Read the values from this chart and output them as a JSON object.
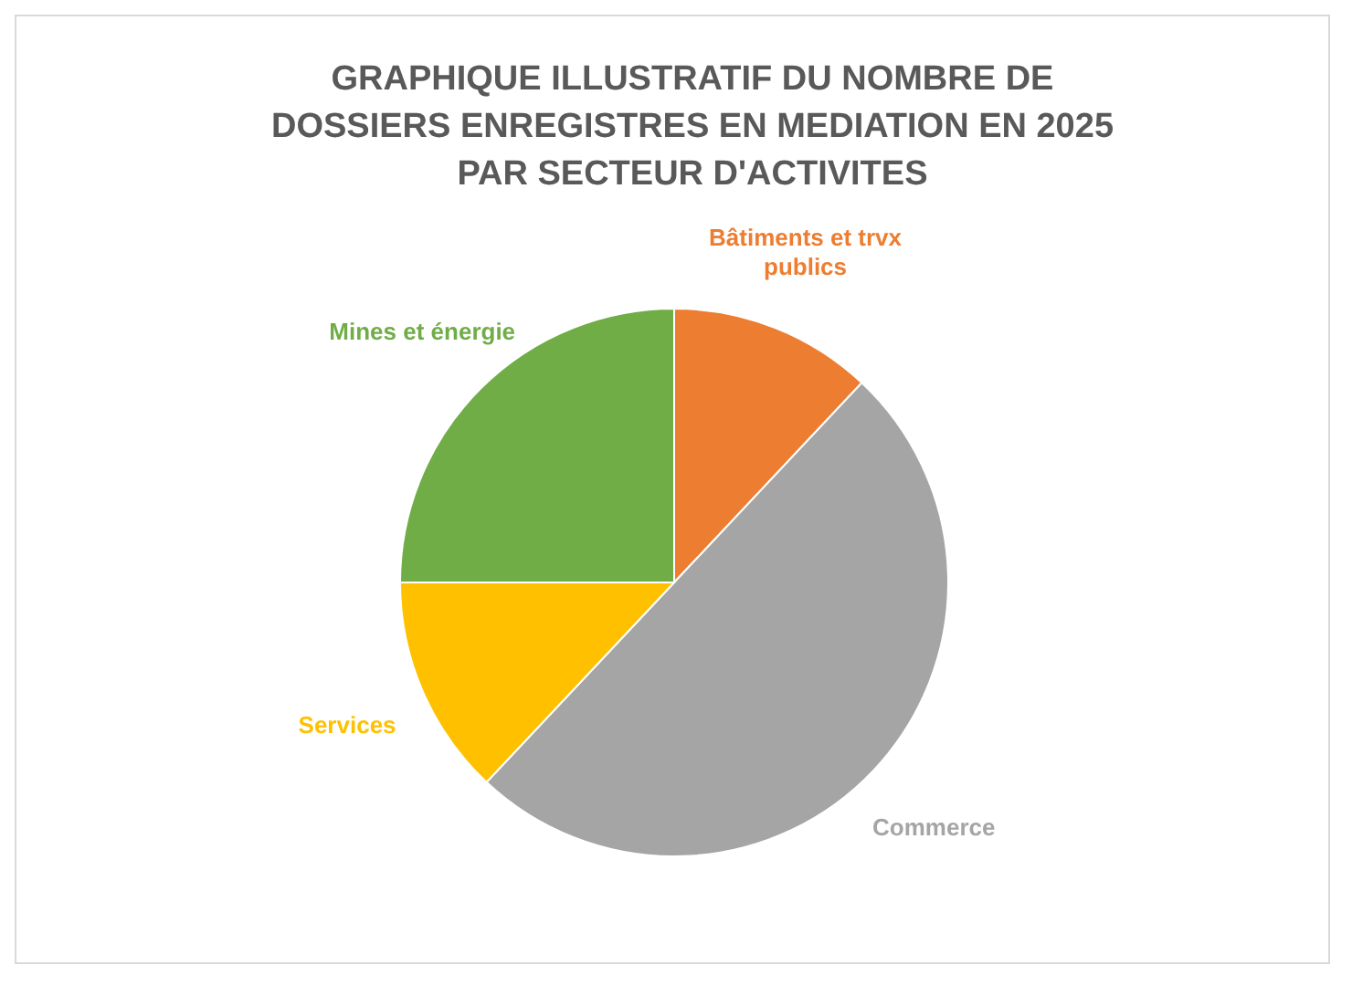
{
  "chart_data": {
    "type": "pie",
    "title": "GRAPHIQUE ILLUSTRATIF DU NOMBRE DE DOSSIERS ENREGISTRES EN MEDIATION EN 2025 PAR SECTEUR D'ACTIVITES",
    "categories": [
      "Bâtiments et trvx publics",
      "Commerce",
      "Services",
      "Mines et énergie"
    ],
    "values": [
      12,
      50,
      13,
      25
    ],
    "colors": [
      "#ed7d31",
      "#a5a5a5",
      "#ffc000",
      "#70ad47"
    ],
    "legend": false
  }
}
